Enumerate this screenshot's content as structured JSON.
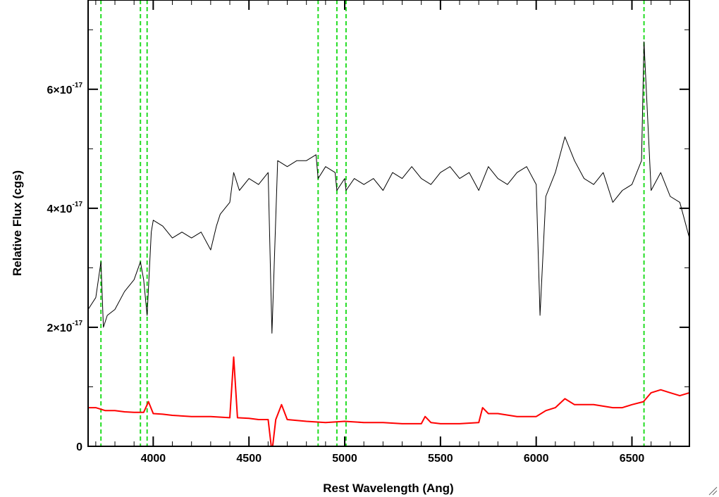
{
  "chart_data": {
    "type": "line",
    "title": "",
    "xlabel": "Rest Wavelength (Ang)",
    "ylabel": "Relative Flux (cgs)",
    "xlim": [
      3660,
      6800
    ],
    "ylim": [
      0,
      7.5e-17
    ],
    "x_ticks": [
      4000,
      4500,
      5000,
      5500,
      6000,
      6500
    ],
    "y_ticks": [
      {
        "value": 0,
        "mantissa": "0",
        "exponent": ""
      },
      {
        "value": 2e-17,
        "mantissa": "2×10",
        "exponent": "-17"
      },
      {
        "value": 4e-17,
        "mantissa": "4×10",
        "exponent": "-17"
      },
      {
        "value": 6e-17,
        "mantissa": "6×10",
        "exponent": "-17"
      }
    ],
    "grid": false,
    "series": [
      {
        "color": "#000000",
        "x": [
          3660,
          3700,
          3727,
          3740,
          3760,
          3800,
          3850,
          3900,
          3933,
          3950,
          3968,
          3990,
          4000,
          4050,
          4100,
          4150,
          4200,
          4250,
          4300,
          4330,
          4350,
          4400,
          4420,
          4450,
          4500,
          4550,
          4600,
          4620,
          4650,
          4700,
          4750,
          4800,
          4850,
          4861,
          4900,
          4950,
          4959,
          5000,
          5007,
          5050,
          5100,
          5150,
          5200,
          5250,
          5300,
          5350,
          5400,
          5450,
          5500,
          5550,
          5600,
          5650,
          5700,
          5750,
          5800,
          5850,
          5900,
          5950,
          6000,
          6020,
          6050,
          6100,
          6150,
          6200,
          6250,
          6300,
          6350,
          6400,
          6450,
          6500,
          6550,
          6563,
          6600,
          6650,
          6700,
          6750,
          6800
        ],
        "y": [
          2.3e-17,
          2.5e-17,
          3.1e-17,
          2e-17,
          2.2e-17,
          2.3e-17,
          2.6e-17,
          2.8e-17,
          3.1e-17,
          2.8e-17,
          2.2e-17,
          3.6e-17,
          3.8e-17,
          3.7e-17,
          3.5e-17,
          3.6e-17,
          3.5e-17,
          3.6e-17,
          3.3e-17,
          3.7e-17,
          3.9e-17,
          4.1e-17,
          4.6e-17,
          4.3e-17,
          4.5e-17,
          4.4e-17,
          4.6e-17,
          1.9e-17,
          4.8e-17,
          4.7e-17,
          4.8e-17,
          4.8e-17,
          4.9e-17,
          4.5e-17,
          4.7e-17,
          4.6e-17,
          4.3e-17,
          4.5e-17,
          4.3e-17,
          4.5e-17,
          4.4e-17,
          4.5e-17,
          4.3e-17,
          4.6e-17,
          4.5e-17,
          4.7e-17,
          4.5e-17,
          4.4e-17,
          4.6e-17,
          4.7e-17,
          4.5e-17,
          4.6e-17,
          4.3e-17,
          4.7e-17,
          4.5e-17,
          4.4e-17,
          4.6e-17,
          4.7e-17,
          4.4e-17,
          2.2e-17,
          4.2e-17,
          4.6e-17,
          5.2e-17,
          4.8e-17,
          4.5e-17,
          4.4e-17,
          4.6e-17,
          4.1e-17,
          4.3e-17,
          4.4e-17,
          4.8e-17,
          6.8e-17,
          4.3e-17,
          4.6e-17,
          4.2e-17,
          4.1e-17,
          3.5e-17
        ]
      },
      {
        "color": "#ff0000",
        "x": [
          3660,
          3700,
          3750,
          3800,
          3850,
          3900,
          3950,
          3975,
          4000,
          4050,
          4100,
          4200,
          4300,
          4400,
          4420,
          4440,
          4500,
          4550,
          4600,
          4620,
          4640,
          4670,
          4700,
          4800,
          4900,
          5000,
          5100,
          5200,
          5300,
          5400,
          5420,
          5450,
          5500,
          5600,
          5700,
          5720,
          5750,
          5800,
          5900,
          6000,
          6050,
          6100,
          6150,
          6200,
          6300,
          6400,
          6450,
          6500,
          6560,
          6600,
          6650,
          6700,
          6750,
          6800
        ],
        "y": [
          6.5e-18,
          6.5e-18,
          6e-18,
          6e-18,
          5.8e-18,
          5.7e-18,
          5.7e-18,
          7.5e-18,
          5.5e-18,
          5.4e-18,
          5.2e-18,
          5e-18,
          5e-18,
          4.8e-18,
          1.5e-17,
          4.8e-18,
          4.7e-18,
          4.5e-18,
          4.5e-18,
          -1e-18,
          4.5e-18,
          7e-18,
          4.5e-18,
          4.2e-18,
          4e-18,
          4.2e-18,
          4e-18,
          4e-18,
          3.8e-18,
          3.8e-18,
          5e-18,
          4e-18,
          3.8e-18,
          3.8e-18,
          4e-18,
          6.5e-18,
          5.5e-18,
          5.5e-18,
          5e-18,
          5e-18,
          6e-18,
          6.5e-18,
          8e-18,
          7e-18,
          7e-18,
          6.5e-18,
          6.5e-18,
          7e-18,
          7.5e-18,
          9e-18,
          9.5e-18,
          9e-18,
          8.5e-18,
          9e-18
        ]
      }
    ],
    "reference_lines": {
      "color": "#22dd22",
      "style": "dashed",
      "x": [
        3727,
        3933,
        3968,
        4861,
        4959,
        5007,
        6563
      ]
    }
  },
  "window": {
    "resize_grip": "resize-grip-icon"
  }
}
